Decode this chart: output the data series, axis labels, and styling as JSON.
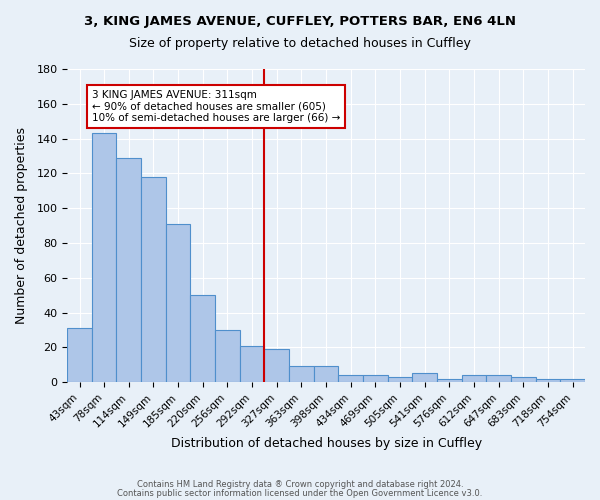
{
  "title1": "3, KING JAMES AVENUE, CUFFLEY, POTTERS BAR, EN6 4LN",
  "title2": "Size of property relative to detached houses in Cuffley",
  "xlabel": "Distribution of detached houses by size in Cuffley",
  "ylabel": "Number of detached properties",
  "footnote1": "Contains HM Land Registry data ® Crown copyright and database right 2024.",
  "footnote2": "Contains public sector information licensed under the Open Government Licence v3.0.",
  "bar_labels": [
    "43sqm",
    "78sqm",
    "114sqm",
    "149sqm",
    "185sqm",
    "220sqm",
    "256sqm",
    "292sqm",
    "327sqm",
    "363sqm",
    "398sqm",
    "434sqm",
    "469sqm",
    "505sqm",
    "541sqm",
    "576sqm",
    "612sqm",
    "647sqm",
    "683sqm",
    "718sqm",
    "754sqm"
  ],
  "bar_values": [
    31,
    143,
    129,
    118,
    91,
    50,
    30,
    21,
    19,
    9,
    9,
    4,
    4,
    3,
    5,
    2,
    4,
    4,
    3,
    2,
    2
  ],
  "bar_color": "#aec6e8",
  "bar_edge_color": "#4f8fcc",
  "background_color": "#e8f0f8",
  "grid_color": "#ffffff",
  "vline_x_index": 8,
  "vline_color": "#cc0000",
  "annotation_title": "3 KING JAMES AVENUE: 311sqm",
  "annotation_line1": "← 90% of detached houses are smaller (605)",
  "annotation_line2": "10% of semi-detached houses are larger (66) →",
  "annotation_box_color": "#ffffff",
  "annotation_box_edge_color": "#cc0000",
  "ylim": [
    0,
    180
  ],
  "yticks": [
    0,
    20,
    40,
    60,
    80,
    100,
    120,
    140,
    160,
    180
  ]
}
